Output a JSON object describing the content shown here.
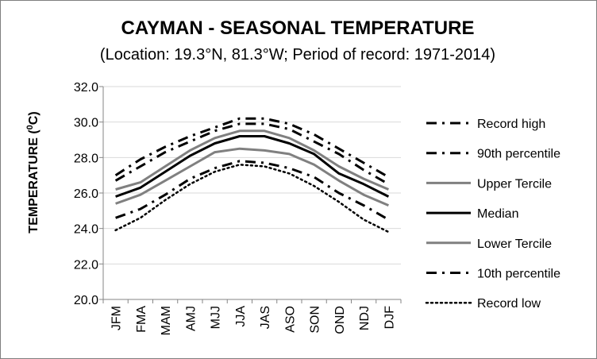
{
  "chart_data": {
    "type": "line",
    "title": "CAYMAN - SEASONAL TEMPERATURE",
    "subtitle": "(Location: 19.3°N, 81.3°W; Period of record: 1971-2014)",
    "ylabel_main": "TEMPERATURE (",
    "ylabel_sup": "0",
    "ylabel_end": "C)",
    "xlabel": "",
    "ylim": [
      20.0,
      32.0
    ],
    "yticks": [
      "20.0",
      "22.0",
      "24.0",
      "26.0",
      "28.0",
      "30.0",
      "32.0"
    ],
    "grid": true,
    "legend_position": "right",
    "categories": [
      "JFM",
      "FMA",
      "MAM",
      "AMJ",
      "MJJ",
      "JJA",
      "JAS",
      "ASO",
      "SON",
      "OND",
      "NDJ",
      "DJF"
    ],
    "series": [
      {
        "name": "Record high",
        "style": "dash-dot",
        "color": "#000000",
        "values": [
          27.0,
          27.9,
          28.6,
          29.2,
          29.7,
          30.2,
          30.2,
          29.9,
          29.3,
          28.5,
          27.7,
          26.9
        ]
      },
      {
        "name": "90th percentile",
        "style": "dash-dot",
        "color": "#000000",
        "values": [
          26.7,
          27.5,
          28.3,
          28.9,
          29.5,
          29.9,
          29.9,
          29.6,
          28.9,
          28.2,
          27.3,
          26.5
        ]
      },
      {
        "name": "Upper Tercile",
        "style": "solid",
        "color": "#808080",
        "values": [
          26.2,
          26.6,
          27.5,
          28.4,
          29.1,
          29.5,
          29.5,
          29.1,
          28.4,
          27.5,
          26.8,
          26.2
        ]
      },
      {
        "name": "Median",
        "style": "solid",
        "color": "#000000",
        "values": [
          25.8,
          26.3,
          27.2,
          28.1,
          28.8,
          29.2,
          29.2,
          28.8,
          28.2,
          27.1,
          26.5,
          25.8
        ]
      },
      {
        "name": "Lower Tercile",
        "style": "solid",
        "color": "#808080",
        "values": [
          25.4,
          25.9,
          26.7,
          27.5,
          28.3,
          28.5,
          28.4,
          28.2,
          27.6,
          26.7,
          25.9,
          25.3
        ]
      },
      {
        "name": "10th percentile",
        "style": "dash-dot",
        "color": "#000000",
        "values": [
          24.6,
          25.1,
          25.9,
          26.8,
          27.4,
          27.8,
          27.7,
          27.4,
          26.9,
          26.0,
          25.3,
          24.5
        ]
      },
      {
        "name": "Record low",
        "style": "dotted",
        "color": "#000000",
        "values": [
          23.9,
          24.6,
          25.6,
          26.5,
          27.2,
          27.6,
          27.5,
          27.1,
          26.4,
          25.5,
          24.5,
          23.8
        ]
      }
    ]
  }
}
